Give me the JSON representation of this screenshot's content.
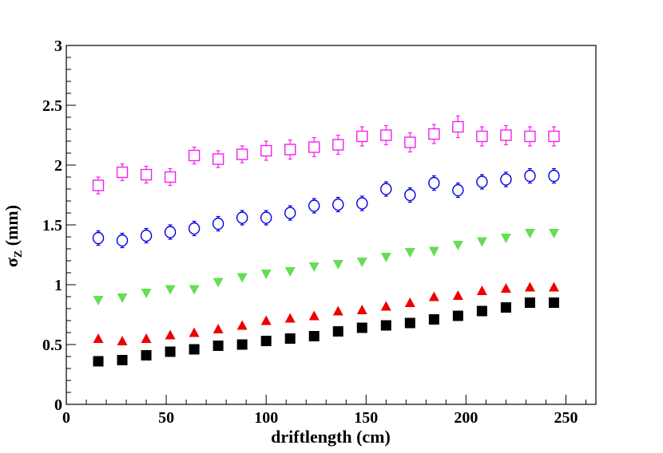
{
  "chart_data": {
    "type": "scatter",
    "title": "",
    "xlabel": "driftlength (cm)",
    "ylabel_main": "σ",
    "ylabel_sub": "Z",
    "ylabel_unit": " (mm)",
    "xlim": [
      0,
      265
    ],
    "ylim": [
      0,
      3
    ],
    "xticks": [
      0,
      50,
      100,
      150,
      200,
      250
    ],
    "yticks": [
      0,
      0.5,
      1,
      1.5,
      2,
      2.5,
      3
    ],
    "xtick_labels": [
      "0",
      "50",
      "100",
      "150",
      "200",
      "250"
    ],
    "ytick_labels": [
      "0",
      "0.5",
      "1",
      "1.5",
      "2",
      "2.5",
      "3"
    ],
    "grid": false,
    "legend": "none",
    "x": [
      16,
      28,
      40,
      52,
      64,
      76,
      88,
      100,
      112,
      124,
      136,
      148,
      160,
      172,
      184,
      196,
      208,
      220,
      232,
      244
    ],
    "series": [
      {
        "marker": "open-square",
        "color": "#ee22ee",
        "values": [
          1.83,
          1.94,
          1.92,
          1.9,
          2.08,
          2.05,
          2.09,
          2.12,
          2.13,
          2.15,
          2.17,
          2.24,
          2.25,
          2.19,
          2.26,
          2.32,
          2.24,
          2.25,
          2.24,
          2.24
        ],
        "errors": [
          0.07,
          0.07,
          0.07,
          0.07,
          0.07,
          0.07,
          0.07,
          0.08,
          0.08,
          0.08,
          0.08,
          0.08,
          0.08,
          0.08,
          0.08,
          0.09,
          0.08,
          0.08,
          0.08,
          0.08
        ]
      },
      {
        "marker": "open-circle",
        "color": "#0000dd",
        "values": [
          1.39,
          1.37,
          1.41,
          1.44,
          1.47,
          1.51,
          1.56,
          1.56,
          1.6,
          1.66,
          1.67,
          1.68,
          1.8,
          1.75,
          1.85,
          1.79,
          1.86,
          1.88,
          1.91,
          1.91
        ],
        "errors": [
          0.06,
          0.06,
          0.06,
          0.06,
          0.06,
          0.06,
          0.06,
          0.06,
          0.06,
          0.06,
          0.06,
          0.06,
          0.06,
          0.06,
          0.06,
          0.06,
          0.06,
          0.06,
          0.06,
          0.06
        ]
      },
      {
        "marker": "filled-triangle-down",
        "color": "#66dd55",
        "values": [
          0.87,
          0.89,
          0.93,
          0.96,
          0.96,
          1.02,
          1.06,
          1.09,
          1.11,
          1.15,
          1.17,
          1.19,
          1.23,
          1.27,
          1.28,
          1.33,
          1.36,
          1.39,
          1.43,
          1.43
        ],
        "errors": [
          0.04,
          0.04,
          0.04,
          0.04,
          0.04,
          0.04,
          0.04,
          0.04,
          0.04,
          0.04,
          0.04,
          0.04,
          0.04,
          0.04,
          0.04,
          0.04,
          0.04,
          0.04,
          0.04,
          0.04
        ]
      },
      {
        "marker": "filled-triangle-up",
        "color": "#ee0000",
        "values": [
          0.55,
          0.53,
          0.55,
          0.58,
          0.6,
          0.63,
          0.66,
          0.7,
          0.72,
          0.74,
          0.78,
          0.79,
          0.82,
          0.85,
          0.9,
          0.91,
          0.95,
          0.97,
          0.98,
          0.98
        ],
        "errors": [
          0.02,
          0.02,
          0.02,
          0.02,
          0.02,
          0.02,
          0.02,
          0.02,
          0.02,
          0.02,
          0.02,
          0.02,
          0.02,
          0.02,
          0.02,
          0.03,
          0.04,
          0.05,
          0.05,
          0.05
        ]
      },
      {
        "marker": "filled-square",
        "color": "#000000",
        "values": [
          0.36,
          0.37,
          0.41,
          0.44,
          0.46,
          0.49,
          0.5,
          0.53,
          0.55,
          0.57,
          0.61,
          0.64,
          0.66,
          0.68,
          0.71,
          0.74,
          0.78,
          0.81,
          0.85,
          0.85
        ],
        "errors": [
          0.01,
          0.01,
          0.01,
          0.01,
          0.01,
          0.01,
          0.01,
          0.01,
          0.01,
          0.01,
          0.01,
          0.01,
          0.01,
          0.01,
          0.01,
          0.01,
          0.01,
          0.01,
          0.01,
          0.01
        ]
      }
    ]
  }
}
